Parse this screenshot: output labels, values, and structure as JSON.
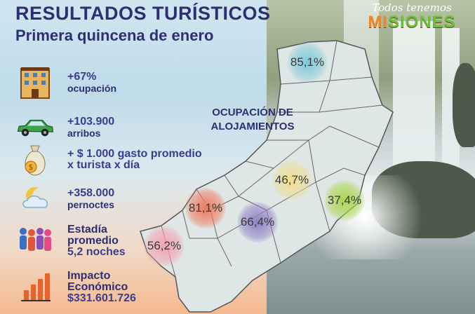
{
  "title": "RESULTADOS TURÍSTICOS",
  "subtitle": "Primera quincena de enero",
  "logo": {
    "script": "Todos tenemos",
    "main_a": "MI",
    "main_b": "SIONES"
  },
  "stats": [
    {
      "value": "+67%",
      "label": "ocupación",
      "icon": "building-icon"
    },
    {
      "value": "+103.900",
      "label": "arribos",
      "icon": "car-icon"
    },
    {
      "value": "+ $ 1.000 gasto promedio",
      "label": "x turista x día",
      "icon": "money-bag-icon"
    },
    {
      "value": "+358.000",
      "label": "pernoctes",
      "icon": "moon-cloud-icon"
    },
    {
      "value": "Estadía",
      "label": "promedio",
      "extra": "5,2 noches",
      "icon": "people-icon"
    },
    {
      "value": "Impacto",
      "label": "Económico",
      "extra": "$331.601.726",
      "icon": "bar-chart-icon"
    }
  ],
  "map": {
    "title_line1": "OCUPACIÓN DE",
    "title_line2": "ALOJAMIENTOS",
    "zones": [
      {
        "value": "85,1%",
        "color": "#5fb7c9"
      },
      {
        "value": "46,7%",
        "color": "#e8d37a"
      },
      {
        "value": "37,4%",
        "color": "#9ccd3b"
      },
      {
        "value": "81,1%",
        "color": "#e8674a"
      },
      {
        "value": "66,4%",
        "color": "#7f6bb8"
      },
      {
        "value": "56,2%",
        "color": "#ef8fa0"
      }
    ]
  }
}
